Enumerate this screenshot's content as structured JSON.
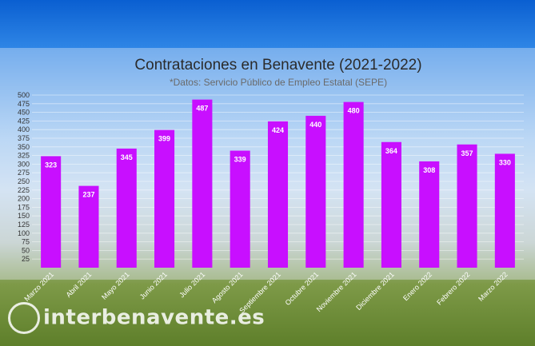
{
  "chart_data": {
    "type": "bar",
    "title": "Contrataciones en Benavente (2021-2022)",
    "subtitle": "*Datos: Servicio Público de Empleo Estatal (SEPE)",
    "categories": [
      "Marzo 2021",
      "Abril 2021",
      "Mayo 2021",
      "Junio 2021",
      "Julio 2021",
      "Agosto 2021",
      "Septiembre 2021",
      "Octubre 2021",
      "Noviembre 2021",
      "Diciembre 2021",
      "Enero 2022",
      "Febrero 2022",
      "Marzo 2022"
    ],
    "values": [
      323,
      237,
      345,
      399,
      487,
      339,
      424,
      440,
      480,
      364,
      308,
      357,
      330
    ],
    "yticks": [
      25,
      50,
      75,
      100,
      125,
      150,
      175,
      200,
      225,
      250,
      275,
      300,
      325,
      350,
      375,
      400,
      425,
      450,
      475,
      500
    ],
    "ylim": [
      0,
      500
    ],
    "grid": true,
    "bar_color": "#c80fff"
  },
  "watermark": "interbenavente.es"
}
